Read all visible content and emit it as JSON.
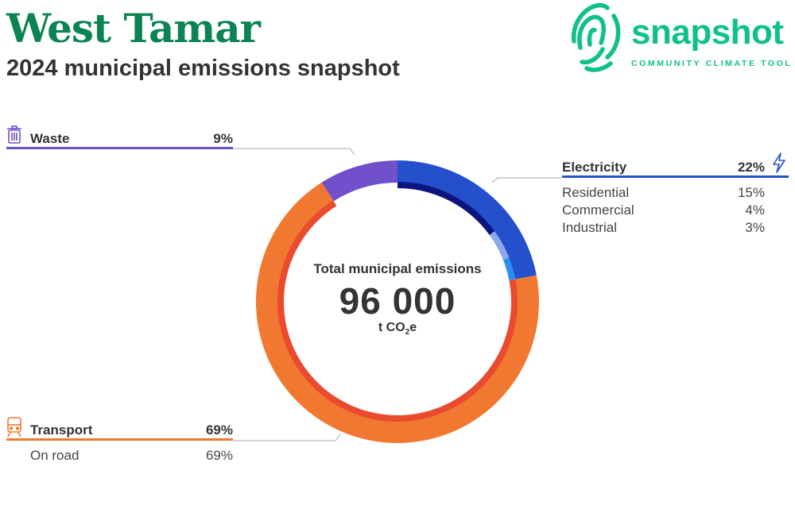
{
  "header": {
    "title": "West Tamar",
    "subtitle": "2024 municipal emissions snapshot"
  },
  "logo": {
    "word": "snapshot",
    "tagline": "COMMUNITY CLIMATE TOOL",
    "icon": "fingerprint-icon",
    "color": "#10c08a"
  },
  "center": {
    "label": "Total municipal emissions",
    "value": "96 000",
    "unit_prefix": "t CO",
    "unit_sub": "2",
    "unit_suffix": "e"
  },
  "chart_data": {
    "type": "pie",
    "style": "donut",
    "total": 96000,
    "total_unit": "t CO2e",
    "sectors": [
      {
        "name": "Electricity",
        "value": 22,
        "value_label": "22%",
        "color": "#2550cc",
        "icon": "lightning-icon",
        "subsectors": [
          {
            "name": "Residential",
            "value": 15,
            "value_label": "15%",
            "color": "#0d1480"
          },
          {
            "name": "Commercial",
            "value": 4,
            "value_label": "4%",
            "color": "#8ea8ec"
          },
          {
            "name": "Industrial",
            "value": 3,
            "value_label": "3%",
            "color": "#2a8ff0"
          }
        ]
      },
      {
        "name": "Transport",
        "value": 69,
        "value_label": "69%",
        "color": "#f07830",
        "icon": "train-icon",
        "subsectors": [
          {
            "name": "On road",
            "value": 69,
            "value_label": "69%",
            "color": "#ea4a2e"
          }
        ]
      },
      {
        "name": "Waste",
        "value": 9,
        "value_label": "9%",
        "color": "#7150cc",
        "icon": "trash-icon",
        "subsectors": []
      }
    ],
    "legend_placement": "around"
  }
}
